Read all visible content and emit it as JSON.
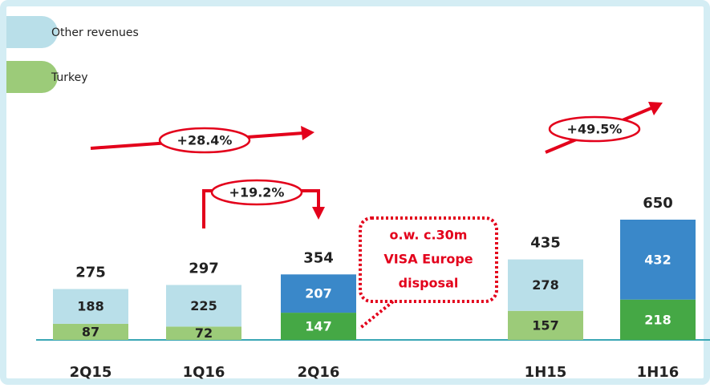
{
  "chart_data": {
    "type": "stacked_bar",
    "categories": [
      "2Q15",
      "1Q16",
      "2Q16",
      "1H15",
      "1H16"
    ],
    "series": [
      {
        "name": "Turkey",
        "color": "#9ccb79",
        "colors": [
          "#9ccb79",
          "#9ccb79",
          "#45a845",
          "#9ccb79",
          "#45a845"
        ],
        "values": [
          87,
          72,
          147,
          157,
          218
        ]
      },
      {
        "name": "Other revenues",
        "color": "#b9dfe9",
        "colors": [
          "#b9dfe9",
          "#b9dfe9",
          "#3a88c9",
          "#b9dfe9",
          "#3a88c9"
        ],
        "values": [
          188,
          225,
          207,
          278,
          432
        ]
      }
    ],
    "totals": [
      275,
      297,
      354,
      435,
      650
    ],
    "annotations": [
      "+28.4%",
      "+19.2%",
      "+49.5%"
    ],
    "callout": [
      "o.w. c.30m",
      "VISA Europe",
      "disposal"
    ]
  }
}
